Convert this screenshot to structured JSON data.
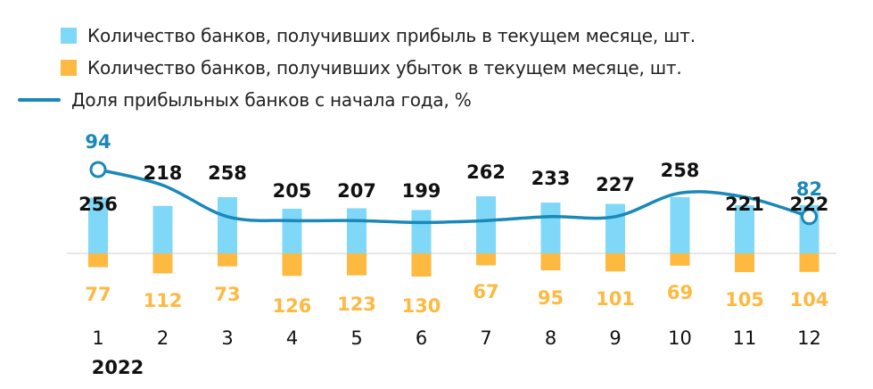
{
  "colors": {
    "profit": "#7fd8f8",
    "loss": "#fdb940",
    "line": "#1a88b8",
    "profit_label": "#111111",
    "loss_label": "#fdb940",
    "line_label": "#1a88b8",
    "axis": "#cfcfcf"
  },
  "chart_data": {
    "type": "bar",
    "categories": [
      "1",
      "2",
      "3",
      "4",
      "5",
      "6",
      "7",
      "8",
      "9",
      "10",
      "11",
      "12"
    ],
    "year_label": "2022",
    "series": [
      {
        "name": "Количество банков, получивших прибыль в текущем месяце, шт.",
        "type": "bar",
        "values": [
          256,
          218,
          258,
          205,
          207,
          199,
          262,
          233,
          227,
          258,
          221,
          222
        ]
      },
      {
        "name": "Количество банков, получивших убыток в текущем месяце, шт.",
        "type": "bar",
        "values": [
          77,
          112,
          73,
          126,
          123,
          130,
          67,
          95,
          101,
          69,
          105,
          104
        ]
      },
      {
        "name": "Доля прибыльных банков с начала года, %",
        "type": "line",
        "values": [
          94,
          90,
          82,
          81,
          81,
          80.5,
          81,
          82,
          82,
          88,
          87,
          82
        ],
        "labeled_points": [
          0,
          11
        ]
      }
    ],
    "legend_position": "top-left",
    "grid": false
  }
}
